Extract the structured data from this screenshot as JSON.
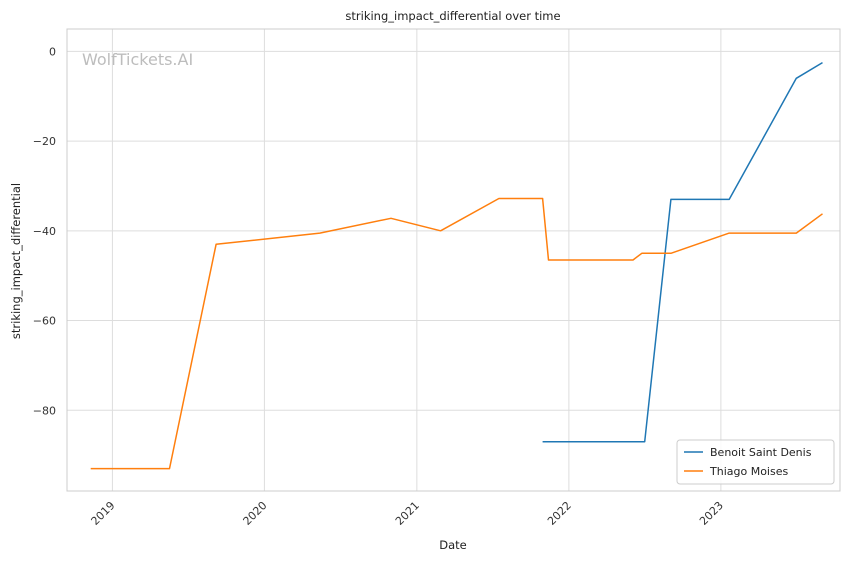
{
  "chart_data": {
    "type": "line",
    "title": "striking_impact_differential over time",
    "xlabel": "Date",
    "ylabel": "striking_impact_differential",
    "watermark": "WolfTickets.AI",
    "x_ticks": [
      "2019",
      "2020",
      "2021",
      "2022",
      "2023"
    ],
    "y_ticks": [
      0,
      -20,
      -40,
      -60,
      -80
    ],
    "xlim": [
      "2018-09-14",
      "2023-10-14"
    ],
    "ylim": [
      -98,
      5
    ],
    "grid": true,
    "legend": "bottom-right",
    "colors": {
      "Benoit Saint Denis": "#1f77b4",
      "Thiago Moises": "#ff7f0e"
    },
    "series": [
      {
        "name": "Benoit Saint Denis",
        "points": [
          [
            "2021-10-30",
            -87.0
          ],
          [
            "2022-07-02",
            -87.0
          ],
          [
            "2022-09-03",
            -33.0
          ],
          [
            "2023-01-21",
            -33.0
          ],
          [
            "2023-07-01",
            -6.0
          ],
          [
            "2023-09-02",
            -2.5
          ]
        ]
      },
      {
        "name": "Thiago Moises",
        "points": [
          [
            "2018-11-10",
            -93.0
          ],
          [
            "2019-05-18",
            -93.0
          ],
          [
            "2019-09-07",
            -43.0
          ],
          [
            "2020-05-13",
            -40.5
          ],
          [
            "2020-10-31",
            -37.2
          ],
          [
            "2021-02-27",
            -40.0
          ],
          [
            "2021-07-17",
            -32.8
          ],
          [
            "2021-10-30",
            -32.8
          ],
          [
            "2021-11-13",
            -46.5
          ],
          [
            "2022-06-04",
            -46.5
          ],
          [
            "2022-06-25",
            -45.0
          ],
          [
            "2022-09-03",
            -45.0
          ],
          [
            "2023-01-21",
            -40.5
          ],
          [
            "2023-07-01",
            -40.5
          ],
          [
            "2023-09-02",
            -36.2
          ]
        ]
      }
    ]
  }
}
